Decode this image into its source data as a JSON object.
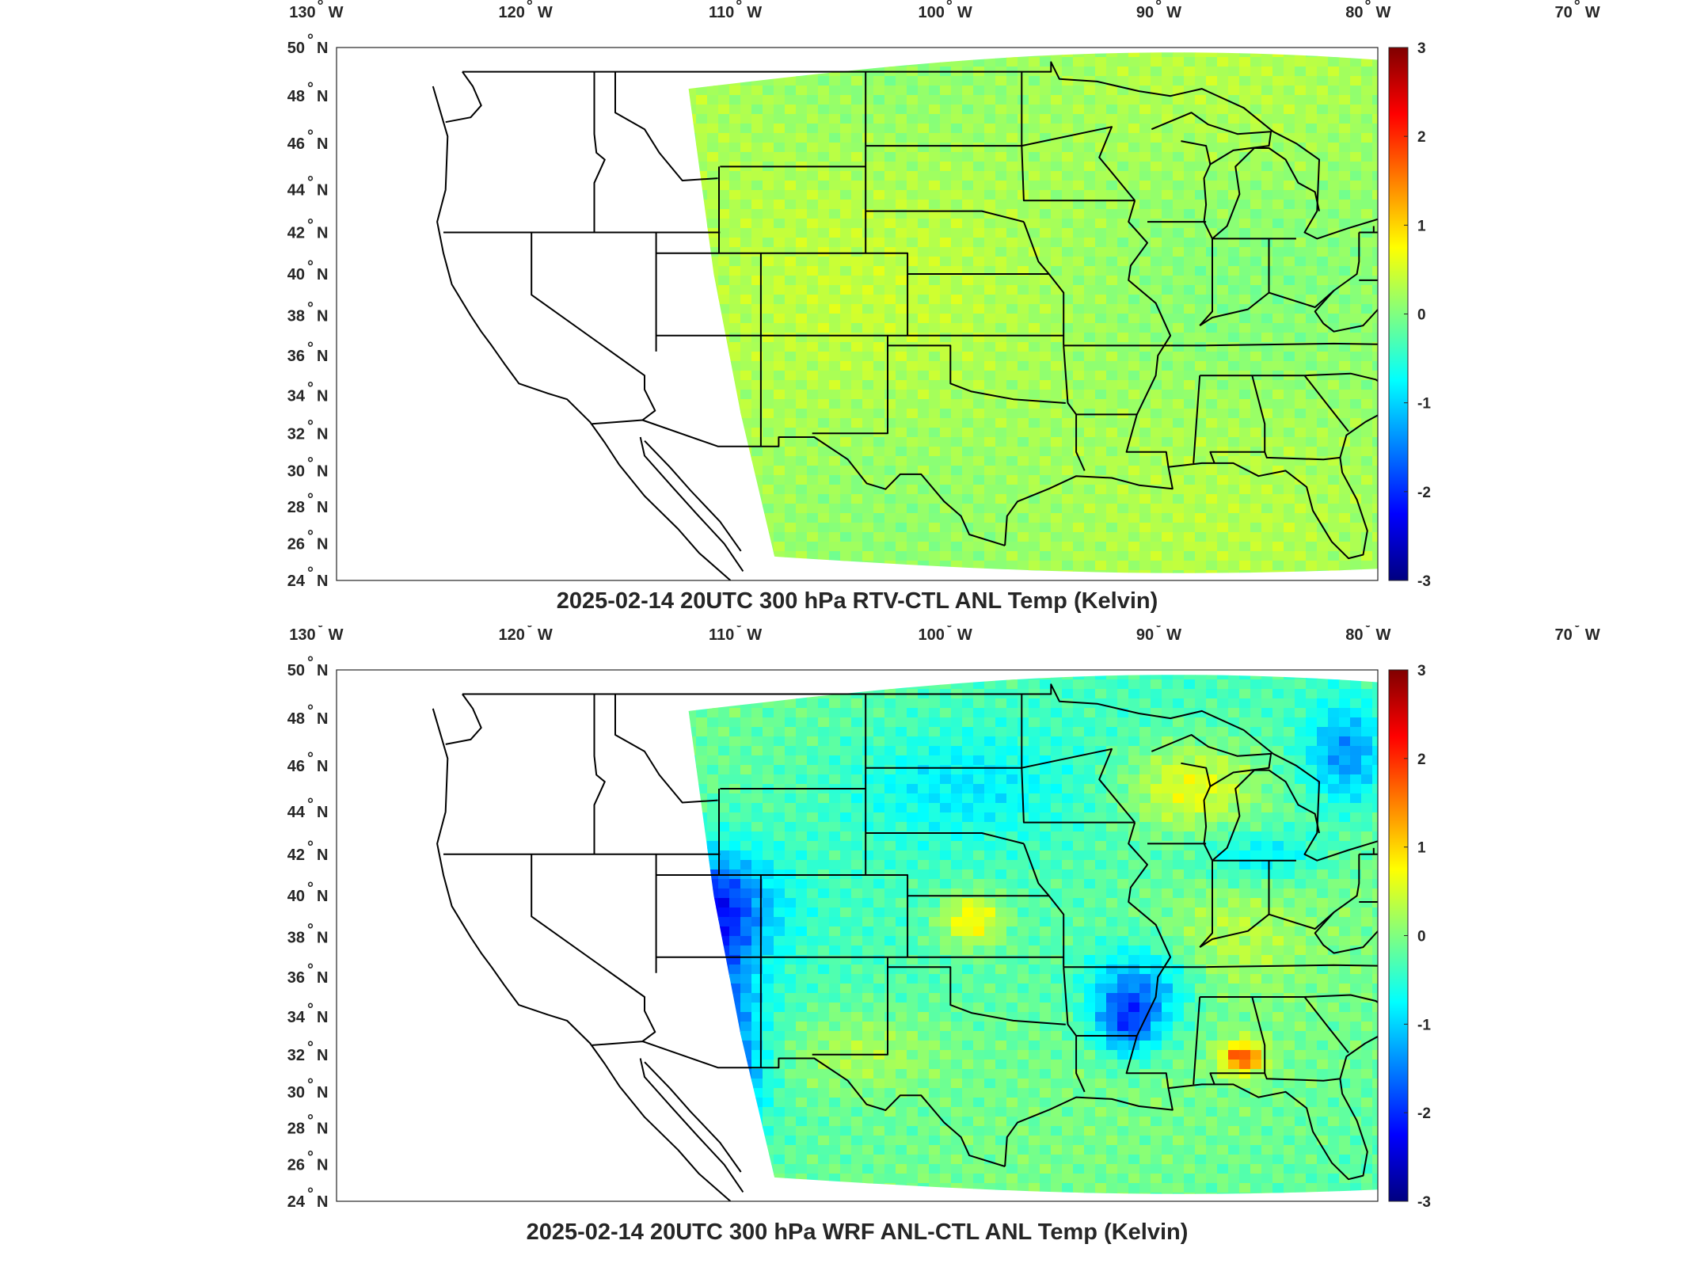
{
  "panels": [
    {
      "title": "2025-02-14 20UTC 300 hPa RTV-CTL ANL Temp (Kelvin)",
      "variant": "rtv"
    },
    {
      "title": "2025-02-14 20UTC 300 hPa WRF ANL-CTL ANL Temp (Kelvin)",
      "variant": "wrf"
    }
  ],
  "axes": {
    "lon_ticks": [
      {
        "value": -130,
        "label": "130",
        "hemi": "W"
      },
      {
        "value": -120,
        "label": "120",
        "hemi": "W"
      },
      {
        "value": -110,
        "label": "110",
        "hemi": "W"
      },
      {
        "value": -100,
        "label": "100",
        "hemi": "W"
      },
      {
        "value": -90,
        "label": "90",
        "hemi": "W"
      },
      {
        "value": -80,
        "label": "80",
        "hemi": "W"
      },
      {
        "value": -70,
        "label": "70",
        "hemi": "W"
      }
    ],
    "lat_ticks": [
      {
        "value": 50,
        "label": "50",
        "hemi": "N"
      },
      {
        "value": 48,
        "label": "48",
        "hemi": "N"
      },
      {
        "value": 46,
        "label": "46",
        "hemi": "N"
      },
      {
        "value": 44,
        "label": "44",
        "hemi": "N"
      },
      {
        "value": 42,
        "label": "42",
        "hemi": "N"
      },
      {
        "value": 40,
        "label": "40",
        "hemi": "N"
      },
      {
        "value": 38,
        "label": "38",
        "hemi": "N"
      },
      {
        "value": 36,
        "label": "36",
        "hemi": "N"
      },
      {
        "value": 34,
        "label": "34",
        "hemi": "N"
      },
      {
        "value": 32,
        "label": "32",
        "hemi": "N"
      },
      {
        "value": 30,
        "label": "30",
        "hemi": "N"
      },
      {
        "value": 28,
        "label": "28",
        "hemi": "N"
      },
      {
        "value": 26,
        "label": "26",
        "hemi": "N"
      },
      {
        "value": 24,
        "label": "24",
        "hemi": "N"
      }
    ],
    "lon_range": [
      -131,
      -65
    ],
    "lat_range": [
      24,
      50
    ]
  },
  "colorbar": {
    "min": -3,
    "max": 3,
    "ticks": [
      "3",
      "2",
      "1",
      "0",
      "-1",
      "-2",
      "-3"
    ],
    "colormap": "jet",
    "colors": [
      "#00008f",
      "#0000ff",
      "#00ffff",
      "#ffff00",
      "#ff0000",
      "#800000"
    ]
  },
  "colors": {
    "border": "#000000",
    "frame": "#262626"
  }
}
